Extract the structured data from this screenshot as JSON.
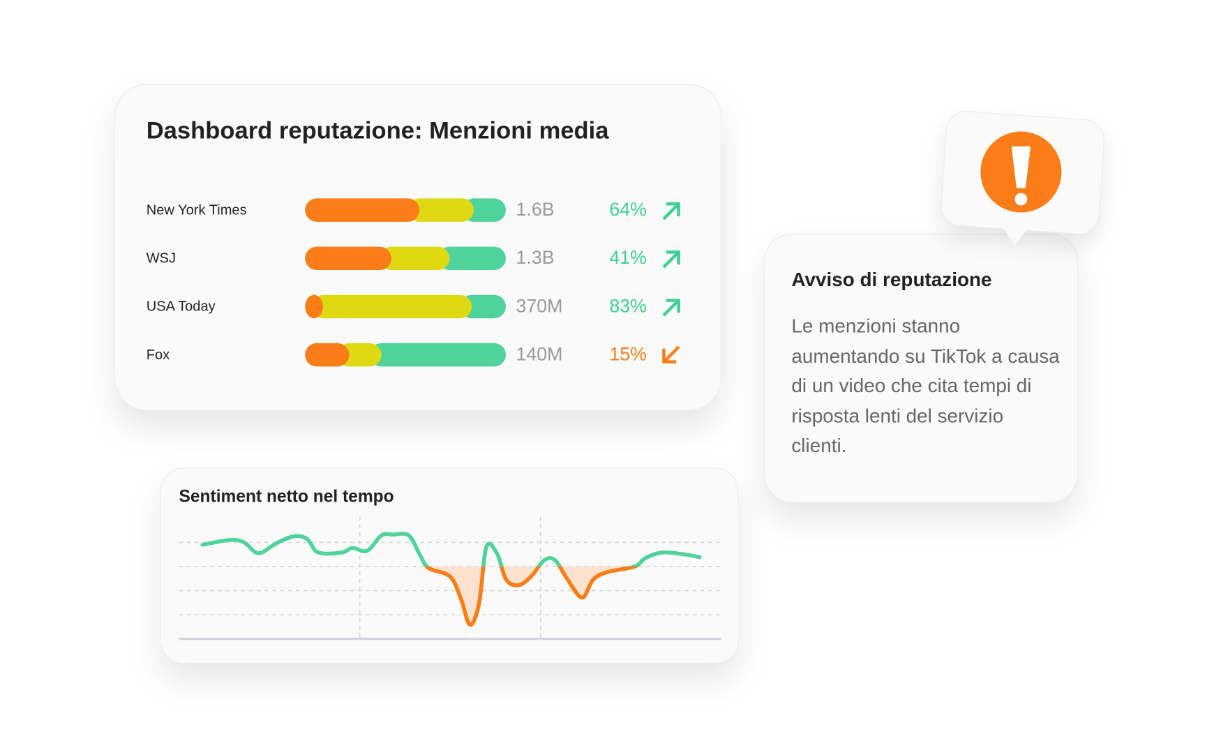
{
  "dashboard": {
    "title": "Dashboard reputazione: Menzioni media",
    "rows": [
      {
        "name": "New York Times",
        "segments": [
          57,
          27,
          16
        ],
        "total": "1.6B",
        "change": 64,
        "change_label": "64%",
        "trend": "up"
      },
      {
        "name": "WSJ",
        "segments": [
          43,
          29,
          28
        ],
        "total": "1.3B",
        "change": 41,
        "change_label": "41%",
        "trend": "up"
      },
      {
        "name": "USA Today",
        "segments": [
          9,
          74,
          17
        ],
        "total": "370M",
        "change": 83,
        "change_label": "83%",
        "trend": "up"
      },
      {
        "name": "Fox",
        "segments": [
          22,
          16,
          62
        ],
        "total": "140M",
        "change": 15,
        "change_label": "15%",
        "trend": "down"
      }
    ],
    "segment_colors": [
      "#fb7d17",
      "#dfd913",
      "#4fd39b"
    ],
    "up_color": "#3fcf92",
    "down_color": "#fb7d17"
  },
  "alert": {
    "title": "Avviso di reputazione",
    "body": "Le menzioni stanno aumentando su TikTok a causa di un video che cita tempi di risposta lenti del servizio clienti."
  },
  "chart_data": {
    "type": "line",
    "title": "Sentiment netto nel tempo",
    "x": [
      1.3,
      2.8,
      3.6,
      4.4,
      5.4,
      6.4,
      7.1,
      7.7,
      9.0,
      9.6,
      10.4,
      11.2,
      11.8,
      12.7,
      13.3,
      13.8,
      15.0,
      15.6,
      16.1,
      16.6,
      17.0,
      17.6,
      18.1,
      18.8,
      19.5,
      20.2,
      20.8,
      21.5,
      22.3,
      22.9,
      23.7,
      25.2,
      25.8,
      26.7,
      27.8,
      28.8
    ],
    "values": [
      0.9,
      1.1,
      1.0,
      0.55,
      0.97,
      1.26,
      1.13,
      0.58,
      0.58,
      0.77,
      0.65,
      1.29,
      1.32,
      1.29,
      0.52,
      -0.06,
      -0.42,
      -1.35,
      -2.42,
      -1.52,
      0.81,
      0.52,
      -0.55,
      -0.77,
      -0.39,
      0.26,
      0.26,
      -0.55,
      -1.29,
      -0.55,
      -0.23,
      0,
      0.35,
      0.58,
      0.52,
      0.39
    ],
    "xlim": [
      0,
      30
    ],
    "ylim": [
      -3,
      1.5
    ],
    "xticks": [
      10,
      20
    ],
    "yticks": [
      -2,
      -1,
      0,
      1
    ],
    "positive_color": "#4fd39b",
    "negative_color": "#fb7d17",
    "negative_fill": "#fde3cf"
  }
}
